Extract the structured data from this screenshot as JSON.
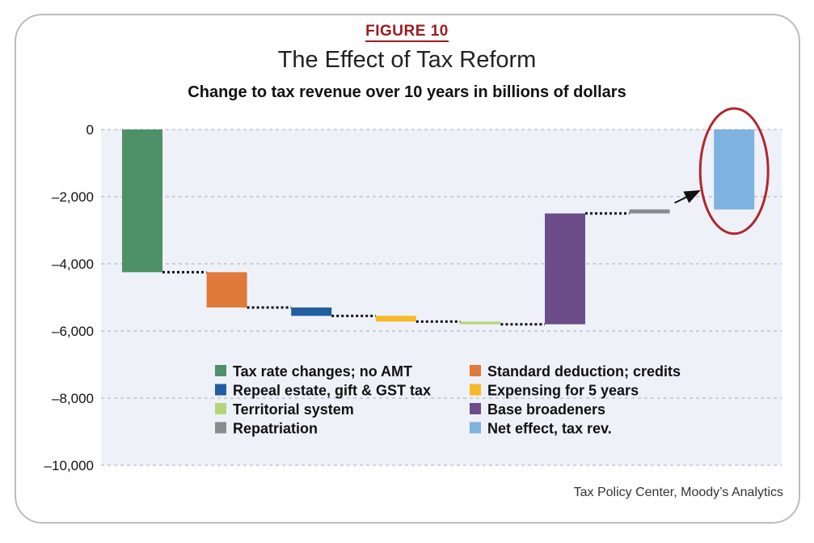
{
  "figure_label": "FIGURE 10",
  "source": "Tax Policy Center, Moody’s Analytics",
  "chart_data": {
    "type": "bar",
    "subtype": "waterfall",
    "title": "The Effect of Tax Reform",
    "subtitle": "Change to tax revenue over 10 years in billions of dollars",
    "ylim": [
      -10000,
      0
    ],
    "yticks": [
      0,
      -2000,
      -4000,
      -6000,
      -8000,
      -10000
    ],
    "ytick_labels": [
      "0",
      "–2,000",
      "–4,000",
      "–6,000",
      "–8,000",
      "–10,000"
    ],
    "grid": true,
    "legend_position": "bottom-center",
    "series": [
      {
        "name": "Tax rate changes; no AMT",
        "color": "#4e9068",
        "start": 0,
        "end": -4250
      },
      {
        "name": "Standard deduction; credits",
        "color": "#e07a3a",
        "start": -4250,
        "end": -5300
      },
      {
        "name": "Repeal estate, gift & GST tax",
        "color": "#1f5fa0",
        "start": -5300,
        "end": -5550
      },
      {
        "name": "Expensing for 5 years",
        "color": "#f7b924",
        "start": -5550,
        "end": -5720
      },
      {
        "name": "Territorial system",
        "color": "#b3d67b",
        "start": -5720,
        "end": -5800
      },
      {
        "name": "Base broadeners",
        "color": "#6c4d8a",
        "start": -5800,
        "end": -2500
      },
      {
        "name": "Repatriation",
        "color": "#8a8c90",
        "start": -2500,
        "end": -2380
      },
      {
        "name": "Net effect, tax rev.",
        "color": "#7eb2df",
        "start": 0,
        "end": -2380,
        "highlighted": true
      }
    ]
  },
  "colors": {
    "plot_background": "#eef1f8",
    "grid": "#a9adb8",
    "highlight_ring": "#b0282d",
    "connector": "#111111",
    "figure_label": "#9b1c1f"
  }
}
